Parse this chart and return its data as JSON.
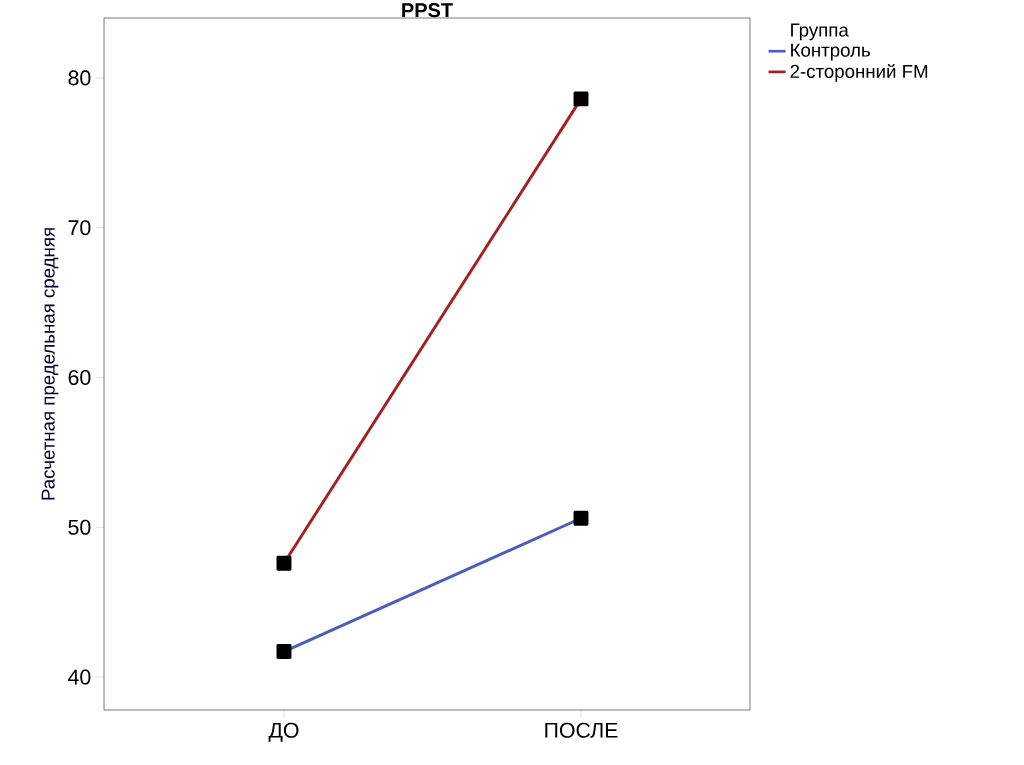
{
  "chart_data": {
    "type": "line",
    "title": "PPST",
    "ylabel": "Расчетная предельная средняя",
    "legend_title": "Группа",
    "categories": [
      "ДО",
      "ПОСЛЕ"
    ],
    "series": [
      {
        "name": "Контроль",
        "color": "#4a5cbf",
        "values": [
          41.7,
          50.6
        ]
      },
      {
        "name": "2-сторонний FM",
        "color": "#a51f22",
        "values": [
          47.6,
          78.6
        ]
      }
    ],
    "ylim": [
      37.8,
      84.0
    ],
    "yticks": [
      40,
      50,
      60,
      70,
      80
    ],
    "grid": false,
    "legend": "top right",
    "marker": "square",
    "line_style": "solid"
  }
}
